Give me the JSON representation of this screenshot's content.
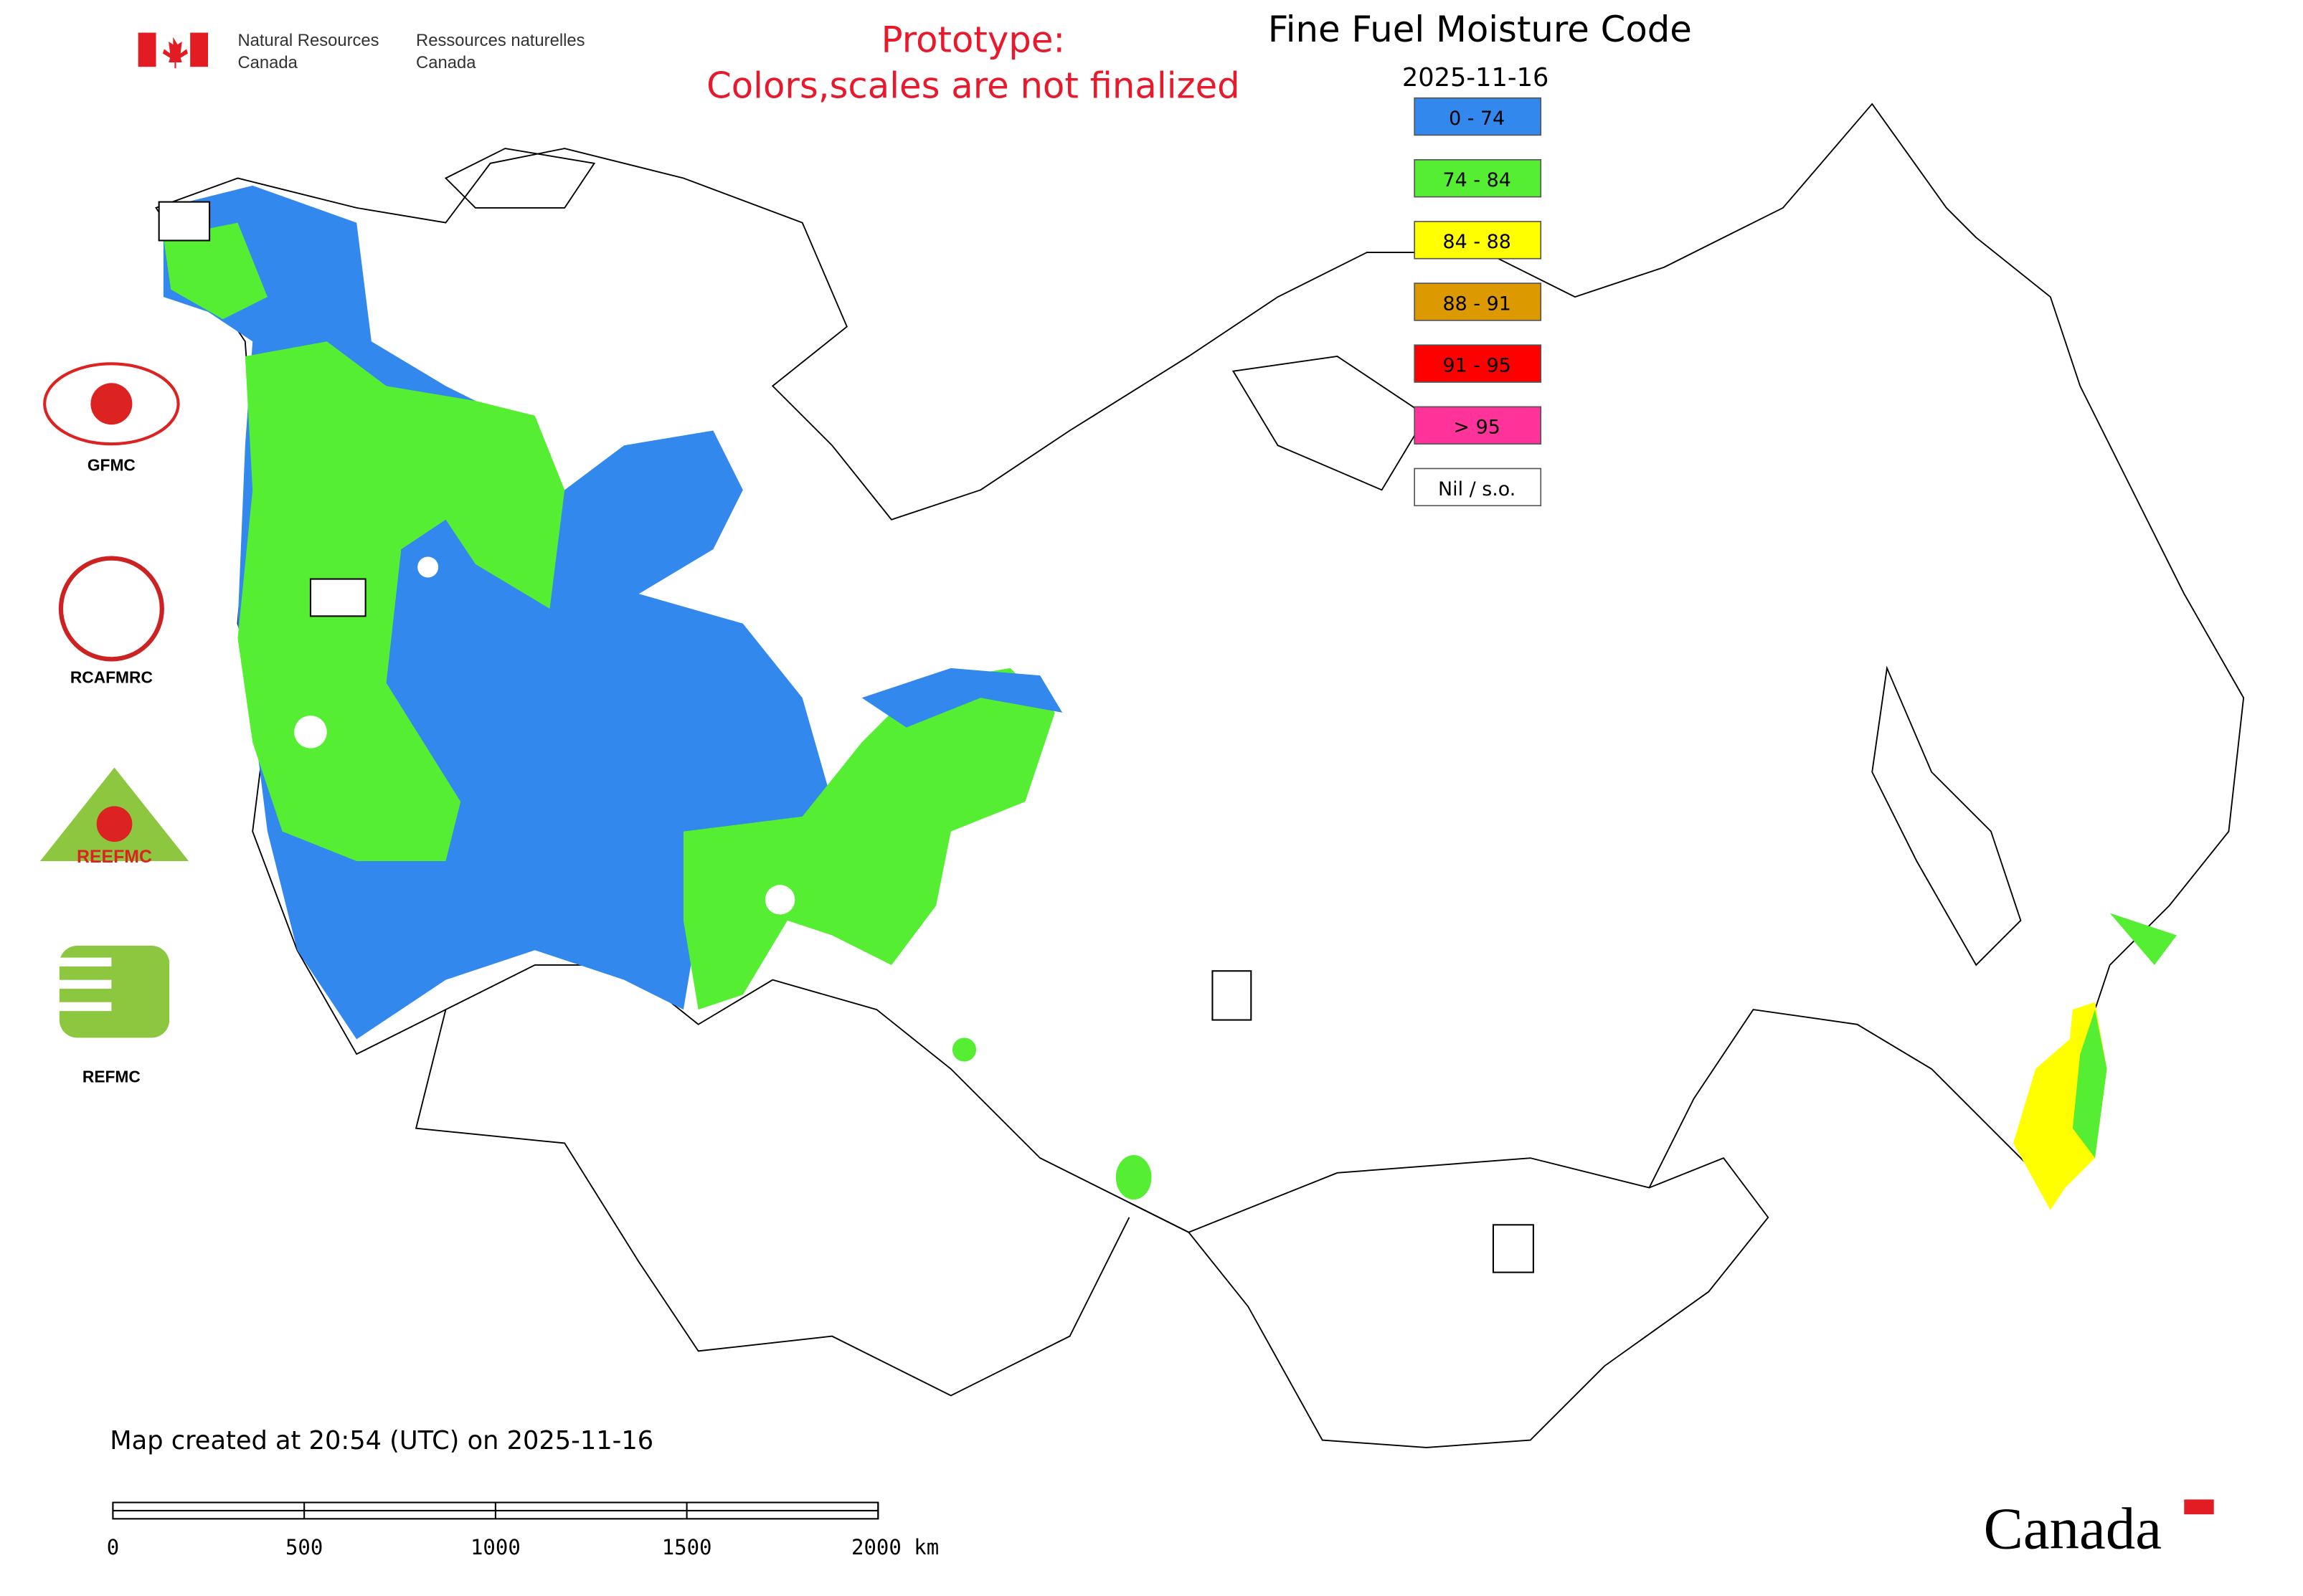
{
  "header": {
    "agency_en": [
      "Natural Resources",
      "Canada"
    ],
    "agency_fr": [
      "Ressources naturelles",
      "Canada"
    ],
    "notice": [
      "Prototype:",
      "Colors,scales are not finalized"
    ]
  },
  "map": {
    "title": "Fine Fuel Moisture Code",
    "date": "2025-11-16",
    "legend": [
      {
        "label": "0 - 74",
        "color": "#3388ee"
      },
      {
        "label": "74 - 84",
        "color": "#55ee33"
      },
      {
        "label": "84 - 88",
        "color": "#ffff00"
      },
      {
        "label": "88 - 91",
        "color": "#dd9900"
      },
      {
        "label": "91 - 95",
        "color": "#ff0000"
      },
      {
        "label": "> 95",
        "color": "#ff3399"
      },
      {
        "label": "Nil / s.o.",
        "color": "#ffffff"
      }
    ],
    "created": "Map created at 20:54 (UTC) on 2025-11-16",
    "scale_labels": [
      "0",
      "500",
      "1000",
      "1500",
      "2000 km"
    ]
  },
  "logos": [
    "GFMC",
    "RCAFMRC",
    "REEFMC",
    "REFMC"
  ],
  "wordmark": "Canada"
}
